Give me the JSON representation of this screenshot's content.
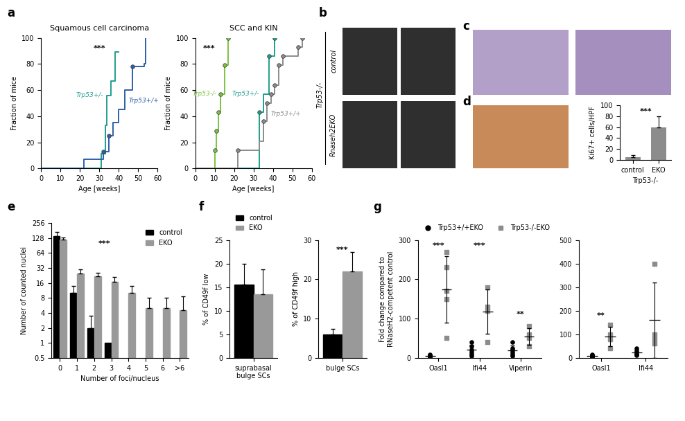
{
  "chart_data": [
    {
      "panel": "a",
      "type": "line",
      "title": "Squamous cell carcinoma",
      "x_label": "Age [weeks]",
      "y_label": "Fraction of mice",
      "xlim": [
        0,
        60
      ],
      "xticks": [
        0,
        10,
        20,
        30,
        40,
        50,
        60
      ],
      "ylim": [
        0,
        100
      ],
      "yticks": [
        0,
        20,
        40,
        60,
        80,
        100
      ],
      "line_style": "steps",
      "annotations": [
        {
          "text": "***",
          "x": 30,
          "y": 92
        }
      ],
      "series": [
        {
          "name": "Trp53+/-",
          "color": "#1f9e8e",
          "x": [
            0,
            31,
            33,
            34,
            36,
            38,
            40
          ],
          "values": [
            0,
            11,
            33,
            56,
            67,
            89,
            89
          ],
          "censored": []
        },
        {
          "name": "Trp53+/+",
          "color": "#2f5fa8",
          "x": [
            0,
            22,
            32,
            35,
            37,
            40,
            43,
            47,
            53,
            54
          ],
          "values": [
            0,
            7,
            13,
            25,
            35,
            45,
            60,
            78,
            80,
            100
          ],
          "censored": [
            32,
            35,
            47
          ]
        }
      ]
    },
    {
      "type": "line",
      "title": "SCC and KIN",
      "x_label": "Age [weeks]",
      "y_label": "Fraction of mice",
      "xlim": [
        0,
        60
      ],
      "xticks": [
        0,
        10,
        20,
        30,
        40,
        50,
        60
      ],
      "ylim": [
        0,
        100
      ],
      "yticks": [
        0,
        20,
        40,
        60,
        80,
        100
      ],
      "line_style": "steps",
      "annotations": [
        {
          "text": "***",
          "x": 7,
          "y": 92
        }
      ],
      "series": [
        {
          "name": "Trp53-/-",
          "color": "#7cc243",
          "x": [
            0,
            10,
            11,
            12,
            13,
            15,
            17
          ],
          "values": [
            0,
            14,
            29,
            43,
            57,
            79,
            100
          ],
          "censored": [
            10,
            11,
            12,
            13,
            15,
            17
          ]
        },
        {
          "name": "Trp53+/-",
          "color": "#1f9e8e",
          "x": [
            0,
            33,
            35,
            38,
            41
          ],
          "values": [
            0,
            43,
            57,
            86,
            100
          ],
          "censored": [
            33,
            38,
            41
          ]
        },
        {
          "name": "Trp53+/+",
          "color": "#8c8c8c",
          "x": [
            0,
            22,
            33,
            35,
            37,
            39,
            41,
            43,
            45,
            53,
            55
          ],
          "values": [
            0,
            14,
            21,
            36,
            50,
            57,
            64,
            79,
            86,
            93,
            100
          ],
          "censored": [
            22,
            35,
            37,
            39,
            41,
            43,
            45,
            53,
            55
          ]
        }
      ]
    },
    {
      "panel": "d",
      "type": "bar",
      "categories": [
        "control",
        "EKO"
      ],
      "values": [
        5,
        60
      ],
      "errors": [
        4,
        20
      ],
      "color": "#8c8c8c",
      "x_label": "Trp53-/-",
      "y_label": "Ki67+ cells/HPF",
      "ylim": [
        0,
        100
      ],
      "yticks": [
        0,
        20,
        40,
        60,
        80,
        100
      ],
      "annotations": [
        {
          "text": "***",
          "x": 0.5,
          "y": 88
        }
      ]
    },
    {
      "panel": "e",
      "type": "bar",
      "categories": [
        "0",
        "1",
        "2",
        "3",
        "4",
        "5",
        "6",
        ">6"
      ],
      "x_label": "Number of foci/nucleus",
      "y_label": "Number of counted nuclei",
      "log": "y",
      "ylim": [
        0.5,
        256
      ],
      "yticks": [
        0.5,
        1,
        2,
        4,
        8,
        16,
        32,
        64,
        128,
        256
      ],
      "legend": "upper right",
      "annotations": [
        {
          "text": "***",
          "x": 2.6,
          "y": 100
        }
      ],
      "series": [
        {
          "name": "control",
          "color": "#000000",
          "values": [
            140,
            10,
            2,
            1,
            null,
            null,
            null,
            null
          ],
          "errors": [
            30,
            4,
            1.5,
            null,
            null,
            null,
            null,
            null
          ]
        },
        {
          "name": "EKO",
          "color": "#999999",
          "values": [
            120,
            25,
            22,
            17,
            10,
            5,
            5,
            4.5
          ],
          "errors": [
            10,
            5,
            4,
            4,
            4,
            3,
            3,
            4
          ]
        }
      ]
    },
    {
      "panel": "f",
      "type": "bar",
      "categories": [
        "suprabasal bulge SCs"
      ],
      "y_label": "% of CD49f low",
      "ylim": [
        0,
        25
      ],
      "yticks": [
        0,
        5,
        10,
        15,
        20,
        25
      ],
      "legend": "top",
      "series": [
        {
          "name": "control",
          "color": "#000000",
          "values": [
            15.5
          ],
          "errors": [
            4.5
          ]
        },
        {
          "name": "EKO",
          "color": "#999999",
          "values": [
            13.5
          ],
          "errors": [
            5.2
          ]
        }
      ]
    },
    {
      "type": "bar",
      "categories": [
        "bulge SCs"
      ],
      "y_label": "% of CD49f high",
      "ylim": [
        0,
        30
      ],
      "yticks": [
        0,
        10,
        20,
        30
      ],
      "annotations": [
        {
          "text": "***",
          "x": 0,
          "y": 27.5
        }
      ],
      "series": [
        {
          "color": "#000000",
          "values": [
            6
          ],
          "errors": [
            1.3
          ]
        },
        {
          "color": "#999999",
          "values": [
            22
          ],
          "errors": [
            5
          ]
        }
      ]
    },
    {
      "panel": "g",
      "type": "scatter",
      "categories": [
        "Oasl1",
        "Ifi44",
        "Viperin"
      ],
      "y_label": "Fold change compared to RNaseH2-competent control",
      "ylim": [
        0,
        300
      ],
      "yticks": [
        0,
        100,
        200,
        300
      ],
      "legend": "top",
      "annotations": [
        {
          "text": "***",
          "x": 0,
          "y": 285
        },
        {
          "text": "***",
          "x": 1,
          "y": 285
        },
        {
          "text": "**",
          "x": 2,
          "y": 110
        }
      ],
      "series": [
        {
          "name": "Trp53+/+EKO",
          "color": "#000000",
          "marker": "circle",
          "values": [
            [
              2,
              3,
              5,
              6,
              8,
              4
            ],
            [
              5,
              10,
              20,
              30,
              40,
              15
            ],
            [
              5,
              10,
              15,
              20,
              40,
              25
            ]
          ],
          "means": [
            4.7,
            20,
            19.2
          ],
          "errors": [
            2.2,
            13,
            12.5
          ]
        },
        {
          "name": "Trp53-/-EKO",
          "color": "#8c8c8c",
          "marker": "square",
          "values": [
            [
              50,
              150,
              170,
              230,
              270
            ],
            [
              40,
              120,
              130,
              180
            ],
            [
              30,
              50,
              60,
              80
            ]
          ],
          "means": [
            174,
            117.5,
            55
          ],
          "errors": [
            85,
            57,
            21
          ]
        }
      ]
    },
    {
      "type": "scatter",
      "categories": [
        "Oasl1",
        "Ifi44"
      ],
      "ylim": [
        0,
        500
      ],
      "yticks": [
        0,
        100,
        200,
        300,
        400,
        500
      ],
      "annotations": [
        {
          "text": "**",
          "x": 0,
          "y": 180
        }
      ],
      "series": [
        {
          "color": "#000000",
          "marker": "circle",
          "values": [
            [
              3,
              5,
              8,
              10,
              15
            ],
            [
              10,
              15,
              20,
              30,
              40
            ]
          ],
          "means": [
            8.2,
            23
          ],
          "errors": [
            4.7,
            12
          ]
        },
        {
          "color": "#8c8c8c",
          "marker": "square",
          "values": [
            [
              40,
              80,
              100,
              140
            ],
            [
              60,
              80,
              100,
              400
            ]
          ],
          "means": [
            90,
            160
          ],
          "errors": [
            41,
            160
          ]
        }
      ]
    }
  ],
  "image_panels": [
    {
      "panel": "b",
      "row_labels": [
        "control",
        "Rnaseh2EKO"
      ],
      "group_label": "Trp53-/-"
    },
    {
      "panel": "c"
    }
  ]
}
